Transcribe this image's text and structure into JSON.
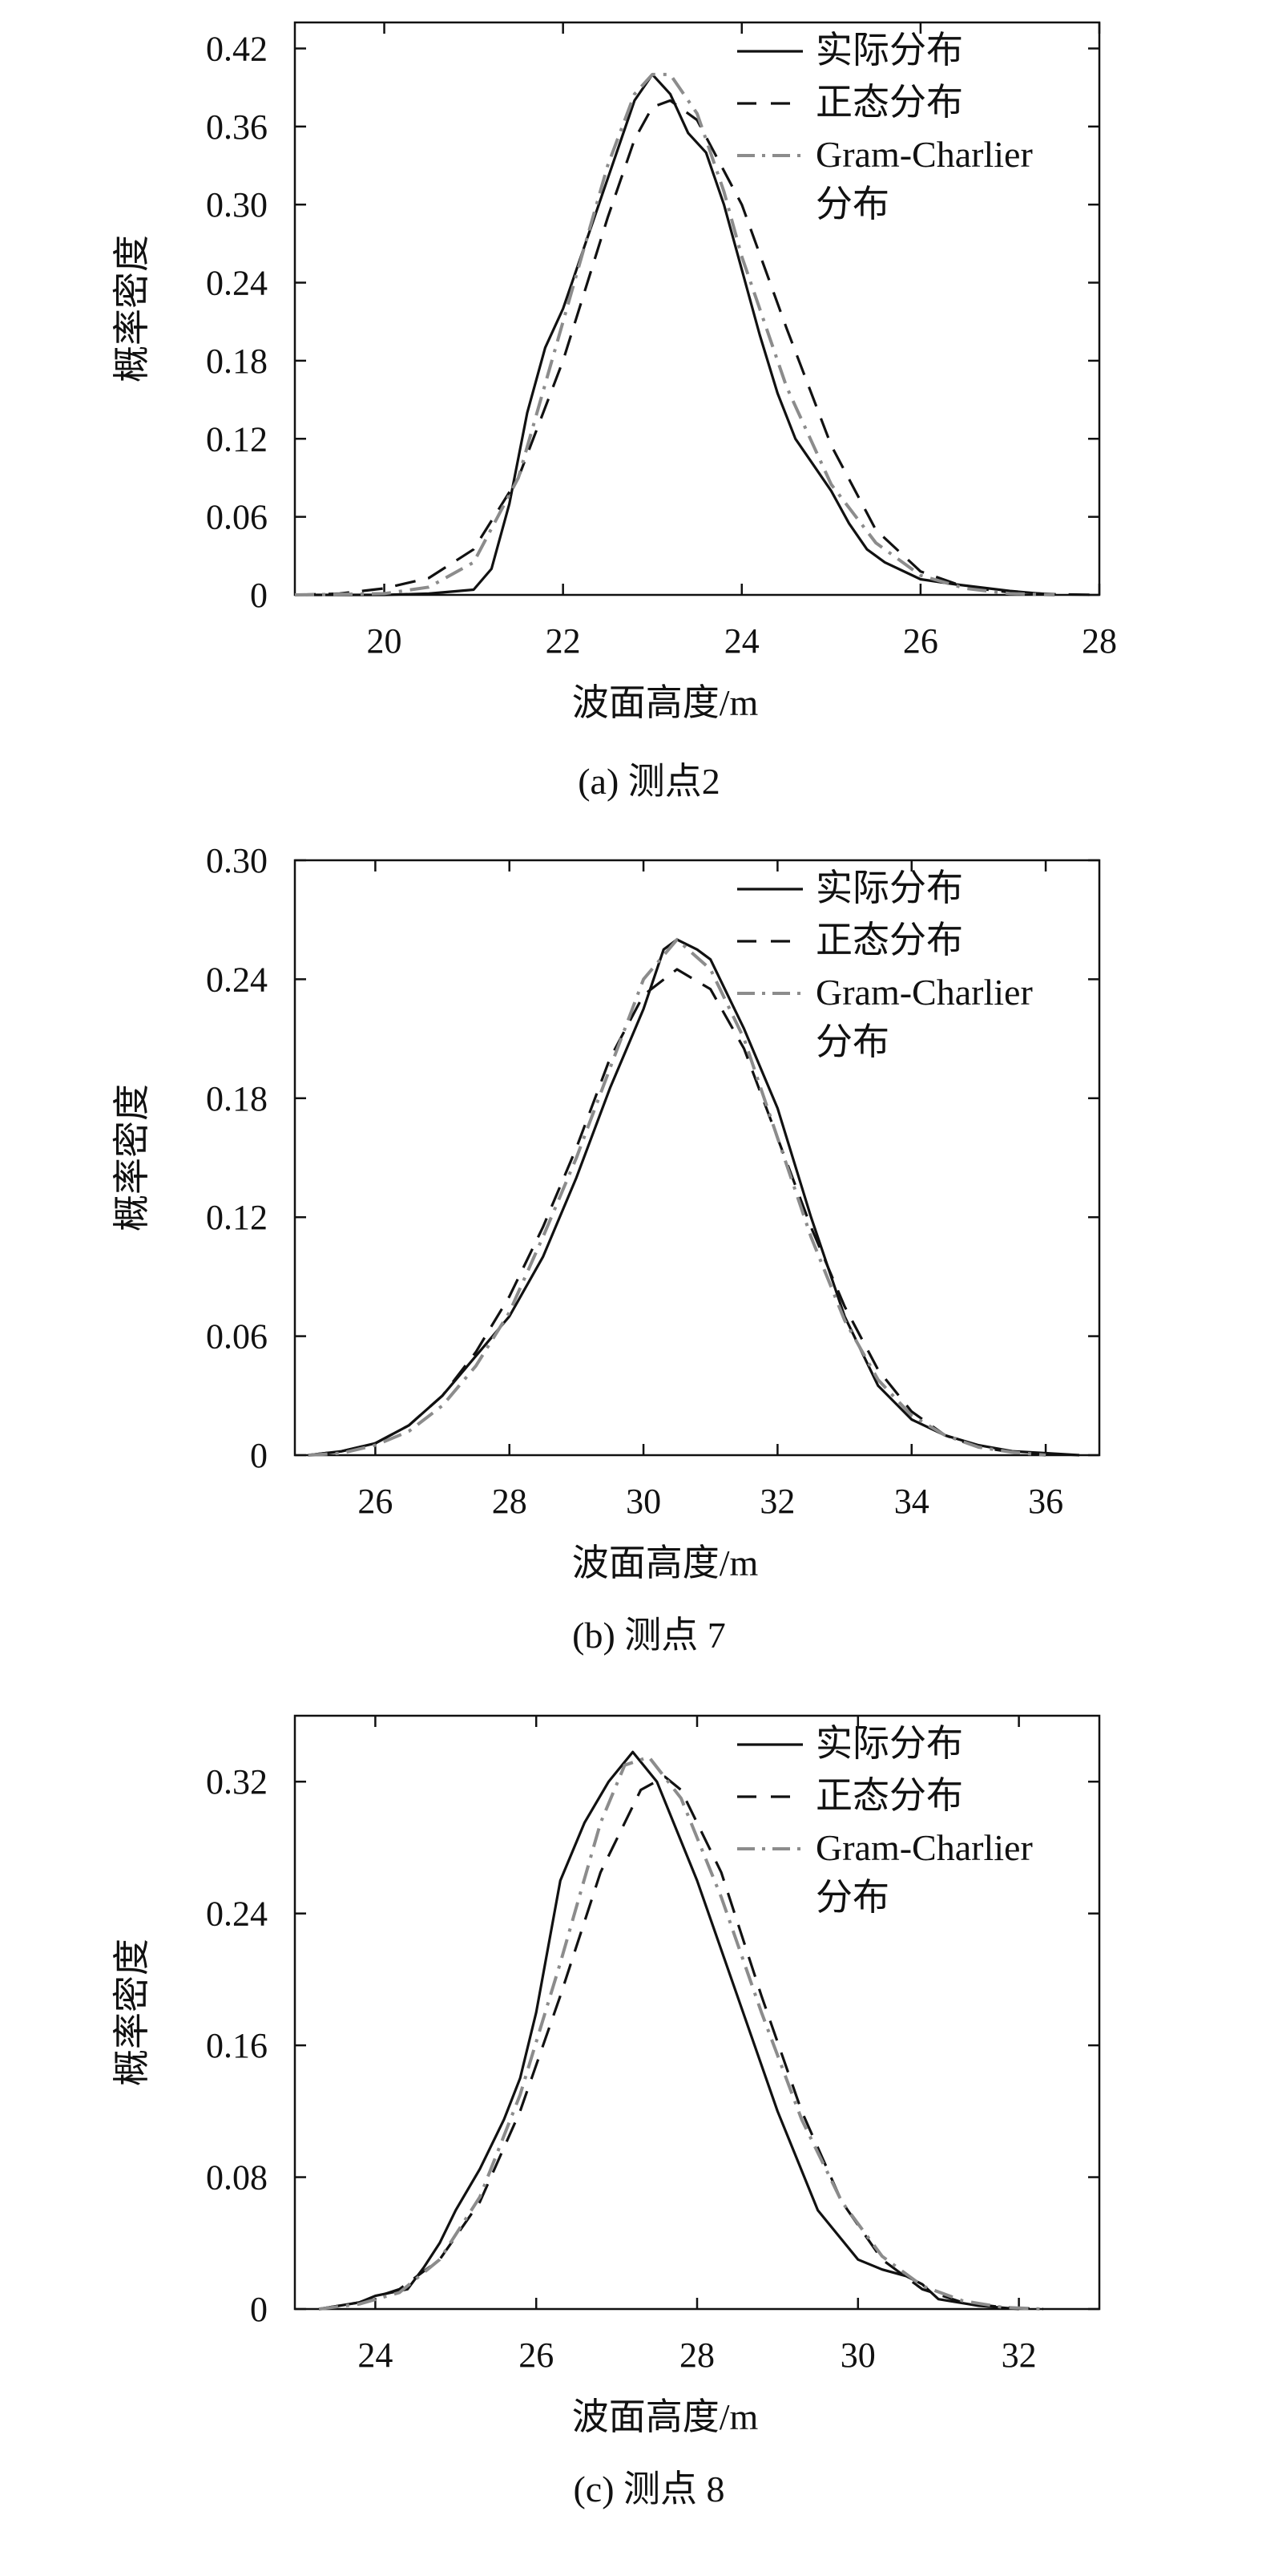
{
  "chart_data": [
    {
      "type": "line",
      "caption": "(a) 测点2",
      "xlabel": "波面高度/m",
      "ylabel": "概率密度",
      "xlim": [
        19,
        28
      ],
      "ylim": [
        0,
        0.44
      ],
      "xticks": [
        20,
        22,
        24,
        26,
        28
      ],
      "yticks": [
        0,
        0.06,
        0.12,
        0.18,
        0.24,
        0.3,
        0.36,
        0.42
      ],
      "ytick_labels": [
        "0",
        "0.06",
        "0.12",
        "0.18",
        "0.24",
        "0.30",
        "0.36",
        "0.42"
      ],
      "legend_position": "top-right",
      "series": [
        {
          "name": "实际分布",
          "style": "solid",
          "color": "#111111",
          "x": [
            19.0,
            20.0,
            20.5,
            21.0,
            21.2,
            21.4,
            21.6,
            21.8,
            22.0,
            22.2,
            22.4,
            22.6,
            22.8,
            23.0,
            23.2,
            23.4,
            23.6,
            23.8,
            24.0,
            24.2,
            24.4,
            24.6,
            24.8,
            25.0,
            25.2,
            25.4,
            25.6,
            26.0,
            26.4,
            27.0,
            27.5
          ],
          "values": [
            0,
            0,
            0.001,
            0.004,
            0.02,
            0.07,
            0.14,
            0.19,
            0.22,
            0.26,
            0.3,
            0.34,
            0.38,
            0.4,
            0.385,
            0.355,
            0.34,
            0.3,
            0.25,
            0.2,
            0.155,
            0.12,
            0.1,
            0.08,
            0.055,
            0.035,
            0.025,
            0.012,
            0.008,
            0.003,
            0
          ]
        },
        {
          "name": "正态分布",
          "style": "dashed",
          "color": "#111111",
          "x": [
            19.0,
            19.5,
            20.0,
            20.5,
            21.0,
            21.5,
            22.0,
            22.5,
            22.8,
            23.0,
            23.2,
            23.5,
            24.0,
            24.5,
            25.0,
            25.5,
            26.0,
            26.5,
            27.0,
            27.5,
            28.0
          ],
          "values": [
            0,
            0.001,
            0.005,
            0.013,
            0.035,
            0.09,
            0.18,
            0.29,
            0.35,
            0.375,
            0.38,
            0.365,
            0.3,
            0.205,
            0.115,
            0.05,
            0.018,
            0.006,
            0.002,
            0.0005,
            0
          ]
        },
        {
          "name": "Gram-Charlier 分布",
          "style": "dashdot",
          "color": "#8c8c8c",
          "x": [
            19.0,
            20.0,
            20.5,
            21.0,
            21.5,
            22.0,
            22.5,
            22.8,
            23.0,
            23.2,
            23.5,
            23.8,
            24.0,
            24.5,
            25.0,
            25.5,
            26.0,
            26.5,
            27.0,
            27.5
          ],
          "values": [
            0,
            0.001,
            0.006,
            0.025,
            0.09,
            0.21,
            0.33,
            0.385,
            0.4,
            0.4,
            0.37,
            0.31,
            0.26,
            0.16,
            0.085,
            0.04,
            0.015,
            0.005,
            0.001,
            0
          ]
        }
      ]
    },
    {
      "type": "line",
      "caption": "(b) 测点 7",
      "xlabel": "波面高度/m",
      "ylabel": "概率密度",
      "xlim": [
        24.8,
        36.8
      ],
      "ylim": [
        0,
        0.3
      ],
      "xticks": [
        26,
        28,
        30,
        32,
        34,
        36
      ],
      "yticks": [
        0,
        0.06,
        0.12,
        0.18,
        0.24,
        0.3
      ],
      "ytick_labels": [
        "0",
        "0.06",
        "0.12",
        "0.18",
        "0.24",
        "0.30"
      ],
      "legend_position": "top-right",
      "series": [
        {
          "name": "实际分布",
          "style": "solid",
          "color": "#111111",
          "x": [
            25.0,
            25.5,
            26.0,
            26.5,
            27.0,
            27.5,
            28.0,
            28.5,
            29.0,
            29.5,
            30.0,
            30.3,
            30.5,
            30.8,
            31.0,
            31.5,
            32.0,
            32.5,
            33.0,
            33.5,
            34.0,
            34.5,
            35.0,
            35.5,
            36.0,
            36.5
          ],
          "values": [
            0,
            0.002,
            0.006,
            0.015,
            0.03,
            0.05,
            0.07,
            0.1,
            0.14,
            0.185,
            0.225,
            0.255,
            0.26,
            0.255,
            0.25,
            0.215,
            0.175,
            0.12,
            0.07,
            0.035,
            0.018,
            0.01,
            0.005,
            0.002,
            0.001,
            0
          ]
        },
        {
          "name": "正态分布",
          "style": "dashed",
          "color": "#111111",
          "x": [
            25.0,
            25.5,
            26.0,
            26.5,
            27.0,
            27.5,
            28.0,
            28.5,
            29.0,
            29.5,
            30.0,
            30.5,
            31.0,
            31.5,
            32.0,
            32.5,
            33.0,
            33.5,
            34.0,
            34.5,
            35.0,
            35.5,
            36.0
          ],
          "values": [
            0,
            0.002,
            0.006,
            0.015,
            0.03,
            0.052,
            0.08,
            0.115,
            0.155,
            0.2,
            0.232,
            0.245,
            0.235,
            0.205,
            0.16,
            0.115,
            0.075,
            0.043,
            0.022,
            0.01,
            0.004,
            0.0015,
            0
          ]
        },
        {
          "name": "Gram-Charlier 分布",
          "style": "dashdot",
          "color": "#8c8c8c",
          "x": [
            25.0,
            25.5,
            26.0,
            26.5,
            27.0,
            27.5,
            28.0,
            28.5,
            29.0,
            29.5,
            30.0,
            30.5,
            31.0,
            31.5,
            32.0,
            32.5,
            33.0,
            33.5,
            34.0,
            34.5,
            35.0,
            35.5,
            36.0
          ],
          "values": [
            0,
            0.001,
            0.005,
            0.012,
            0.025,
            0.045,
            0.072,
            0.11,
            0.15,
            0.195,
            0.24,
            0.26,
            0.245,
            0.21,
            0.16,
            0.11,
            0.068,
            0.038,
            0.02,
            0.01,
            0.004,
            0.0015,
            0
          ]
        }
      ]
    },
    {
      "type": "line",
      "caption": "(c) 测点 8",
      "xlabel": "波面高度/m",
      "ylabel": "概率密度",
      "xlim": [
        23,
        33
      ],
      "ylim": [
        0,
        0.36
      ],
      "xticks": [
        24,
        26,
        28,
        30,
        32
      ],
      "yticks": [
        0,
        0.08,
        0.16,
        0.24,
        0.32
      ],
      "ytick_labels": [
        "0",
        "0.08",
        "0.16",
        "0.24",
        "0.32"
      ],
      "legend_position": "top-right",
      "series": [
        {
          "name": "实际分布",
          "style": "solid",
          "color": "#111111",
          "x": [
            23.3,
            23.8,
            24.0,
            24.2,
            24.4,
            24.6,
            24.8,
            25.0,
            25.3,
            25.6,
            25.8,
            26.0,
            26.3,
            26.6,
            26.9,
            27.2,
            27.5,
            28.0,
            28.5,
            29.0,
            29.5,
            30.0,
            30.3,
            30.6,
            30.8,
            31.0,
            31.5,
            32.0
          ],
          "values": [
            0,
            0.004,
            0.008,
            0.01,
            0.012,
            0.025,
            0.04,
            0.06,
            0.085,
            0.115,
            0.14,
            0.18,
            0.26,
            0.295,
            0.32,
            0.338,
            0.32,
            0.26,
            0.19,
            0.12,
            0.06,
            0.03,
            0.024,
            0.02,
            0.015,
            0.006,
            0.002,
            0
          ]
        },
        {
          "name": "正态分布",
          "style": "dashed",
          "color": "#111111",
          "x": [
            23.3,
            23.8,
            24.3,
            24.8,
            25.3,
            25.8,
            26.3,
            26.8,
            27.3,
            27.6,
            27.8,
            28.3,
            28.8,
            29.3,
            29.8,
            30.3,
            30.8,
            31.3,
            31.8,
            32.3
          ],
          "values": [
            0,
            0.004,
            0.012,
            0.03,
            0.065,
            0.12,
            0.19,
            0.265,
            0.315,
            0.323,
            0.315,
            0.265,
            0.19,
            0.12,
            0.065,
            0.03,
            0.012,
            0.004,
            0.001,
            0
          ]
        },
        {
          "name": "Gram-Charlier 分布",
          "style": "dashdot",
          "color": "#8c8c8c",
          "x": [
            23.3,
            23.8,
            24.3,
            24.8,
            25.3,
            25.8,
            26.3,
            26.8,
            27.1,
            27.4,
            27.8,
            28.3,
            28.8,
            29.3,
            29.8,
            30.3,
            30.8,
            31.3,
            31.8,
            32.3
          ],
          "values": [
            0,
            0.003,
            0.01,
            0.03,
            0.068,
            0.13,
            0.21,
            0.295,
            0.33,
            0.335,
            0.31,
            0.25,
            0.18,
            0.115,
            0.065,
            0.032,
            0.014,
            0.005,
            0.001,
            0
          ]
        }
      ]
    }
  ]
}
